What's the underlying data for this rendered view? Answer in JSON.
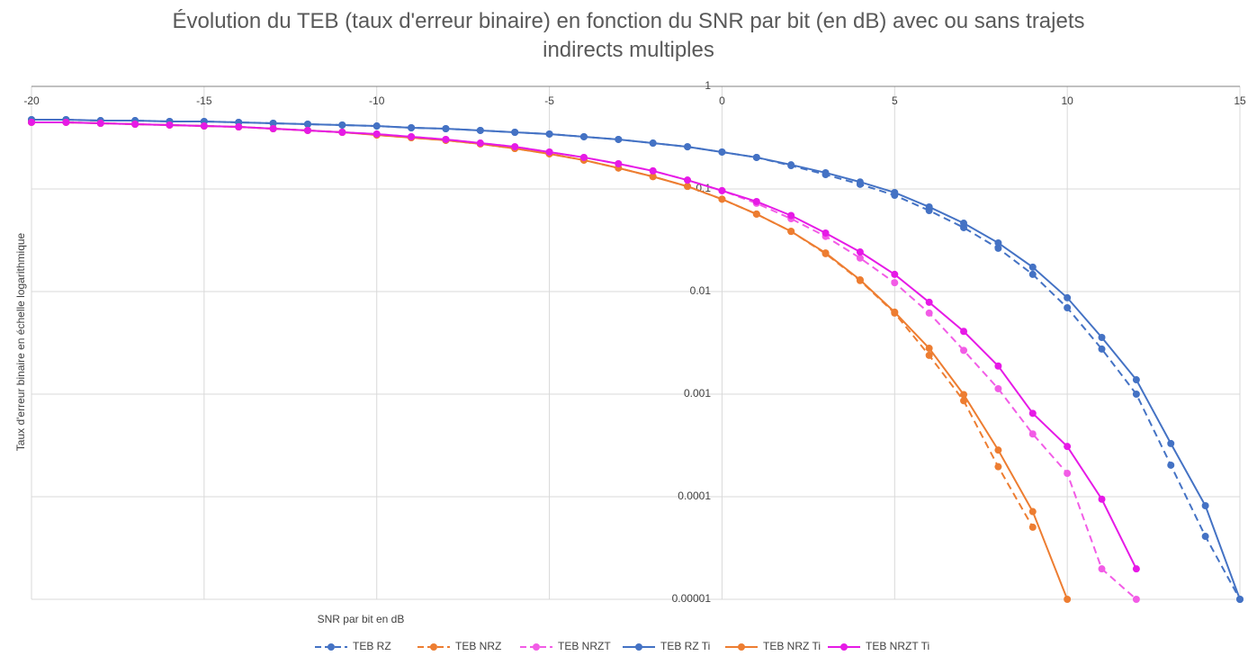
{
  "chart_data": {
    "type": "line",
    "title": "Évolution du TEB (taux d'erreur binaire) en fonction du SNR par bit (en dB) avec ou sans trajets indirects multiples",
    "x_label": "SNR par bit en dB",
    "y_label": "Taux d'erreur binaire en échelle logarithmique",
    "x": [
      -20,
      -19,
      -18,
      -17,
      -16,
      -15,
      -14,
      -13,
      -12,
      -11,
      -10,
      -9,
      -8,
      -7,
      -6,
      -5,
      -4,
      -3,
      -2,
      -1,
      0,
      1,
      2,
      3,
      4,
      5,
      6,
      7,
      8,
      9,
      10,
      11,
      12,
      13,
      14,
      15
    ],
    "xlim": [
      -20,
      15
    ],
    "xticks": [
      -20,
      -15,
      -10,
      -5,
      0,
      5,
      10,
      15
    ],
    "ylim": [
      1e-05,
      1
    ],
    "yticks": [
      1,
      0.1,
      0.01,
      0.001,
      0.0001,
      1e-05
    ],
    "log_y": true,
    "grid": true,
    "legend": "bottom",
    "series": [
      {
        "name": "TEB RZ",
        "color": "#4472c4",
        "dashed": true,
        "values": [
          0.474,
          0.474,
          0.464,
          0.464,
          0.455,
          0.455,
          0.446,
          0.437,
          0.428,
          0.42,
          0.411,
          0.395,
          0.387,
          0.372,
          0.357,
          0.343,
          0.323,
          0.304,
          0.28,
          0.258,
          0.229,
          0.203,
          0.169,
          0.138,
          0.111,
          0.0868,
          0.0616,
          0.042,
          0.0264,
          0.0147,
          0.00695,
          0.00275,
          0.001,
          0.000203,
          4.11e-05,
          1e-05
        ]
      },
      {
        "name": "TEB NRZ",
        "color": "#ed7d31",
        "dashed": true,
        "values": [
          0.446,
          0.446,
          0.437,
          0.428,
          0.42,
          0.411,
          0.403,
          0.387,
          0.372,
          0.357,
          0.336,
          0.316,
          0.298,
          0.275,
          0.248,
          0.22,
          0.191,
          0.16,
          0.132,
          0.106,
          0.0795,
          0.0569,
          0.0386,
          0.0234,
          0.0128,
          0.00617,
          0.00239,
          0.000862,
          0.000196,
          5.04e-05,
          null,
          null,
          null,
          null,
          null,
          null
        ]
      },
      {
        "name": "TEB NRZT",
        "color": "#f25ce6",
        "dashed": true,
        "values": [
          0.446,
          0.446,
          0.437,
          0.428,
          0.42,
          0.411,
          0.403,
          0.387,
          0.372,
          0.357,
          0.343,
          0.323,
          0.304,
          0.28,
          0.258,
          0.229,
          0.203,
          0.176,
          0.15,
          0.122,
          0.0963,
          0.0725,
          0.0513,
          0.0345,
          0.0212,
          0.0122,
          0.00617,
          0.00267,
          0.00113,
          0.000409,
          0.000169,
          1.98e-05,
          1e-05,
          null,
          null,
          null
        ]
      },
      {
        "name": "TEB RZ Ti",
        "color": "#4472c4",
        "dashed": false,
        "values": [
          0.474,
          0.474,
          0.464,
          0.464,
          0.455,
          0.455,
          0.446,
          0.437,
          0.428,
          0.42,
          0.411,
          0.395,
          0.387,
          0.372,
          0.357,
          0.343,
          0.323,
          0.304,
          0.28,
          0.258,
          0.229,
          0.203,
          0.172,
          0.144,
          0.117,
          0.0923,
          0.0668,
          0.0464,
          0.0298,
          0.0173,
          0.0087,
          0.00357,
          0.00138,
          0.00033,
          8.17e-05,
          1e-05
        ]
      },
      {
        "name": "TEB NRZ Ti",
        "color": "#ed7d31",
        "dashed": false,
        "values": [
          0.446,
          0.446,
          0.437,
          0.428,
          0.42,
          0.411,
          0.403,
          0.387,
          0.372,
          0.357,
          0.336,
          0.316,
          0.298,
          0.275,
          0.248,
          0.22,
          0.191,
          0.16,
          0.132,
          0.106,
          0.0795,
          0.0569,
          0.0386,
          0.0238,
          0.013,
          0.0063,
          0.0028,
          0.00099,
          0.000285,
          7.16e-05,
          1e-05,
          null,
          null,
          null,
          null,
          null
        ]
      },
      {
        "name": "TEB NRZT Ti",
        "color": "#e61ae6",
        "dashed": false,
        "values": [
          0.446,
          0.446,
          0.437,
          0.428,
          0.42,
          0.411,
          0.403,
          0.387,
          0.372,
          0.357,
          0.343,
          0.323,
          0.304,
          0.28,
          0.258,
          0.229,
          0.203,
          0.176,
          0.15,
          0.122,
          0.0963,
          0.0754,
          0.0551,
          0.0372,
          0.0243,
          0.0147,
          0.00786,
          0.00409,
          0.00188,
          0.00065,
          0.000309,
          9.46e-05,
          1.98e-05,
          null,
          null,
          null
        ]
      }
    ]
  }
}
